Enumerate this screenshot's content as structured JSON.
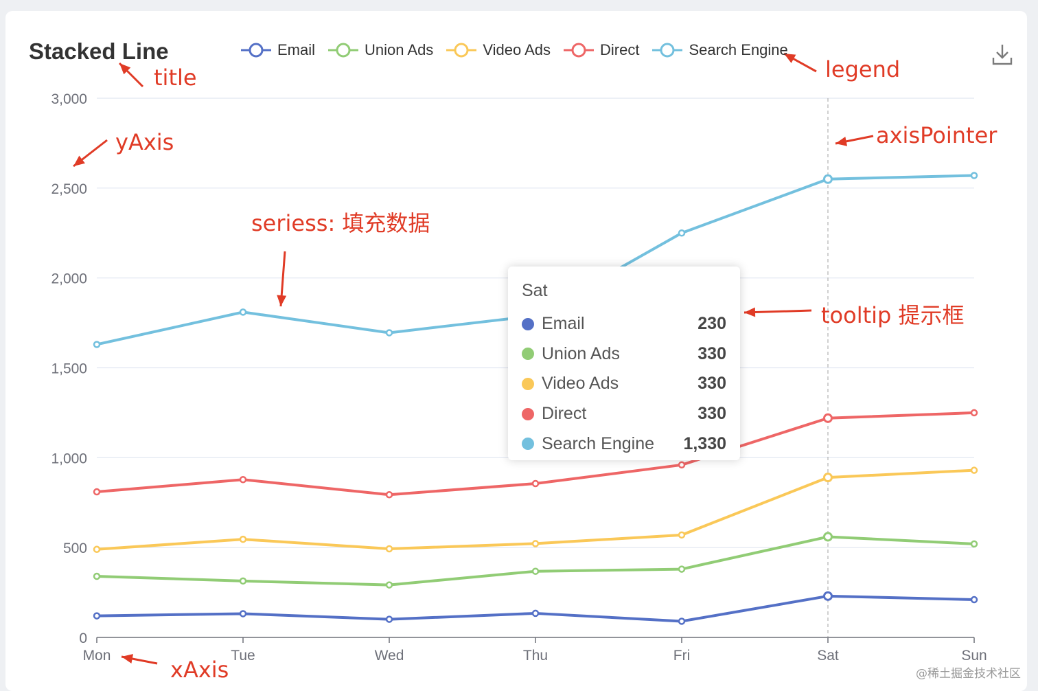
{
  "chart_data": {
    "type": "line",
    "title": "Stacked Line",
    "categories": [
      "Mon",
      "Tue",
      "Wed",
      "Thu",
      "Fri",
      "Sat",
      "Sun"
    ],
    "ylim": [
      0,
      3000
    ],
    "yticks": [
      "0",
      "500",
      "1,000",
      "1,500",
      "2,000",
      "2,500",
      "3,000"
    ],
    "ytick_values": [
      0,
      500,
      1000,
      1500,
      2000,
      2500,
      3000
    ],
    "grid": true,
    "legend_position": "top",
    "stacked": true,
    "series": [
      {
        "name": "Email",
        "color": "#5470c6",
        "values": [
          120,
          132,
          101,
          134,
          90,
          230,
          210
        ]
      },
      {
        "name": "Union Ads",
        "color": "#91cc75",
        "values": [
          220,
          182,
          191,
          234,
          290,
          330,
          310
        ]
      },
      {
        "name": "Video Ads",
        "color": "#fac858",
        "values": [
          150,
          232,
          201,
          154,
          190,
          330,
          410
        ]
      },
      {
        "name": "Direct",
        "color": "#ee6666",
        "values": [
          320,
          332,
          301,
          334,
          390,
          330,
          320
        ]
      },
      {
        "name": "Search Engine",
        "color": "#73c0de",
        "values": [
          820,
          932,
          901,
          934,
          1290,
          1330,
          1320
        ]
      }
    ],
    "axis_pointer_category": "Sat"
  },
  "tooltip": {
    "title": "Sat",
    "rows": [
      {
        "name": "Email",
        "value": "230",
        "color": "#5470c6"
      },
      {
        "name": "Union Ads",
        "value": "330",
        "color": "#91cc75"
      },
      {
        "name": "Video Ads",
        "value": "330",
        "color": "#fac858"
      },
      {
        "name": "Direct",
        "value": "330",
        "color": "#ee6666"
      },
      {
        "name": "Search Engine",
        "value": "1,330",
        "color": "#73c0de"
      }
    ]
  },
  "toolbox": {
    "download_icon": "download-icon"
  },
  "annotations": {
    "title": "title",
    "yaxis": "yAxis",
    "legend": "legend",
    "axis_pointer": "axisPointer",
    "series": "seriess: 填充数据",
    "tooltip": "tooltip 提示框",
    "xaxis": "xAxis",
    "color": "#e03b26"
  },
  "watermark": "@稀土掘金技术社区"
}
